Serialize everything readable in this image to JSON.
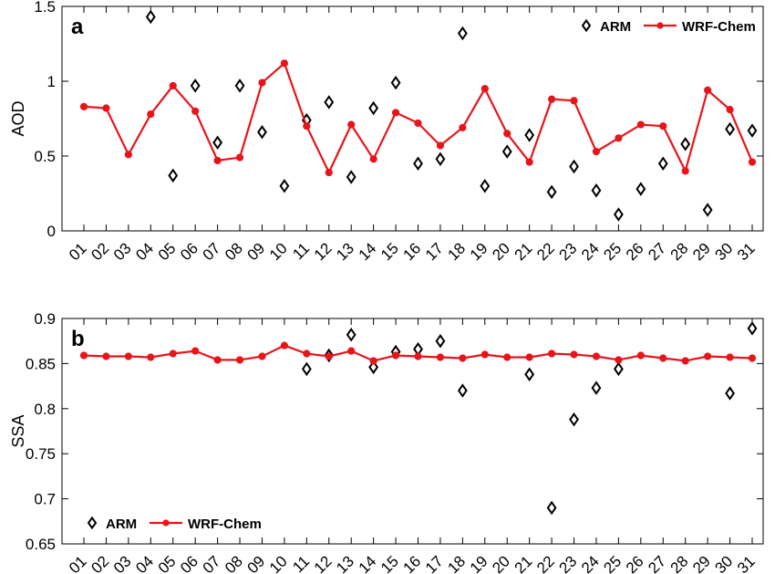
{
  "chart_data": [
    {
      "type": "line",
      "panel_label": "a",
      "ylabel": "AOD",
      "xlabel": "",
      "categories": [
        "01",
        "02",
        "03",
        "04",
        "05",
        "06",
        "07",
        "08",
        "09",
        "10",
        "11",
        "12",
        "13",
        "14",
        "15",
        "16",
        "17",
        "18",
        "19",
        "20",
        "21",
        "22",
        "23",
        "24",
        "25",
        "26",
        "27",
        "28",
        "29",
        "30",
        "31"
      ],
      "ylim": [
        0,
        1.5
      ],
      "yticks": [
        "0",
        "0.5",
        "1",
        "1.5"
      ],
      "grid": false,
      "legend_position": "top-right",
      "series": [
        {
          "name": "ARM",
          "marker": "diamond",
          "color": "#000000",
          "values": [
            null,
            null,
            null,
            1.43,
            0.37,
            0.97,
            0.59,
            0.97,
            0.66,
            0.3,
            0.74,
            0.86,
            0.36,
            0.82,
            0.99,
            0.45,
            0.48,
            1.32,
            0.3,
            0.53,
            0.64,
            0.26,
            0.43,
            0.27,
            0.11,
            0.28,
            0.45,
            0.58,
            0.14,
            0.68,
            0.67
          ]
        },
        {
          "name": "WRF-Chem",
          "marker": "circle",
          "color": "#e8141b",
          "values": [
            0.83,
            0.82,
            0.51,
            0.78,
            0.97,
            0.8,
            0.47,
            0.49,
            0.99,
            1.12,
            0.7,
            0.39,
            0.71,
            0.48,
            0.79,
            0.72,
            0.57,
            0.69,
            0.95,
            0.65,
            0.46,
            0.88,
            0.87,
            0.53,
            0.62,
            0.71,
            0.7,
            0.4,
            0.94,
            0.81,
            0.46
          ]
        }
      ]
    },
    {
      "type": "line",
      "panel_label": "b",
      "ylabel": "SSA",
      "xlabel": "",
      "categories": [
        "01",
        "02",
        "03",
        "04",
        "05",
        "06",
        "07",
        "08",
        "09",
        "10",
        "11",
        "12",
        "13",
        "14",
        "15",
        "16",
        "17",
        "18",
        "19",
        "20",
        "21",
        "22",
        "23",
        "24",
        "25",
        "26",
        "27",
        "28",
        "29",
        "30",
        "31"
      ],
      "ylim": [
        0.65,
        0.9
      ],
      "yticks": [
        "0.65",
        "0.7",
        "0.75",
        "0.8",
        "0.85",
        "0.9"
      ],
      "grid": false,
      "legend_position": "bottom-left",
      "series": [
        {
          "name": "ARM",
          "marker": "diamond",
          "color": "#000000",
          "values": [
            null,
            null,
            null,
            null,
            null,
            null,
            null,
            null,
            null,
            null,
            0.844,
            0.859,
            0.882,
            0.846,
            0.863,
            0.866,
            0.875,
            0.82,
            null,
            null,
            0.838,
            0.69,
            0.788,
            0.823,
            0.844,
            null,
            null,
            null,
            null,
            0.817,
            0.889
          ]
        },
        {
          "name": "WRF-Chem",
          "marker": "circle",
          "color": "#e8141b",
          "values": [
            0.859,
            0.858,
            0.858,
            0.857,
            0.861,
            0.864,
            0.854,
            0.854,
            0.858,
            0.87,
            0.861,
            0.858,
            0.864,
            0.853,
            0.859,
            0.858,
            0.857,
            0.856,
            0.86,
            0.857,
            0.857,
            0.861,
            0.86,
            0.858,
            0.854,
            0.859,
            0.856,
            0.853,
            0.858,
            0.857,
            0.856
          ]
        }
      ]
    }
  ]
}
